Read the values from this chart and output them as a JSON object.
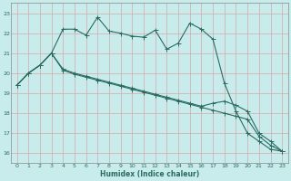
{
  "xlabel": "Humidex (Indice chaleur)",
  "bg_color": "#c8ecec",
  "grid_color": "#d4a8a8",
  "line_color": "#2a6b60",
  "ylim": [
    15.5,
    23.5
  ],
  "xlim": [
    -0.5,
    23.5
  ],
  "yticks": [
    16,
    17,
    18,
    19,
    20,
    21,
    22,
    23
  ],
  "xticks": [
    0,
    1,
    2,
    3,
    4,
    5,
    6,
    7,
    8,
    9,
    10,
    11,
    12,
    13,
    14,
    15,
    16,
    17,
    18,
    19,
    20,
    21,
    22,
    23
  ],
  "line1_x": [
    0,
    1,
    2,
    3,
    4,
    5,
    6,
    7,
    8,
    9,
    10,
    11,
    12,
    13,
    14,
    15,
    16,
    17,
    18,
    19,
    20,
    21,
    22,
    23
  ],
  "line1_y": [
    19.4,
    20.0,
    20.4,
    21.0,
    22.2,
    22.2,
    21.9,
    22.8,
    22.1,
    22.0,
    21.85,
    21.8,
    22.15,
    21.2,
    21.5,
    22.5,
    22.2,
    21.7,
    19.5,
    18.1,
    17.0,
    16.6,
    16.2,
    16.1
  ],
  "line2_x": [
    0,
    1,
    2,
    3,
    4,
    5,
    6,
    7,
    8,
    9,
    10,
    11,
    12,
    13,
    14,
    15,
    16,
    17,
    18,
    19,
    20,
    21,
    22,
    23
  ],
  "line2_y": [
    19.4,
    20.0,
    20.4,
    21.0,
    20.2,
    20.0,
    19.85,
    19.7,
    19.55,
    19.4,
    19.25,
    19.1,
    18.95,
    18.8,
    18.65,
    18.5,
    18.35,
    18.5,
    18.6,
    18.4,
    18.1,
    17.0,
    16.6,
    16.1
  ],
  "line3_x": [
    0,
    1,
    2,
    3,
    4,
    5,
    6,
    7,
    8,
    9,
    10,
    11,
    12,
    13,
    14,
    15,
    16,
    17,
    18,
    19,
    20,
    21,
    22,
    23
  ],
  "line3_y": [
    19.4,
    20.0,
    20.4,
    21.0,
    20.15,
    19.95,
    19.8,
    19.65,
    19.5,
    19.35,
    19.2,
    19.05,
    18.9,
    18.75,
    18.6,
    18.45,
    18.3,
    18.15,
    18.0,
    17.85,
    17.7,
    16.85,
    16.4,
    16.1
  ]
}
